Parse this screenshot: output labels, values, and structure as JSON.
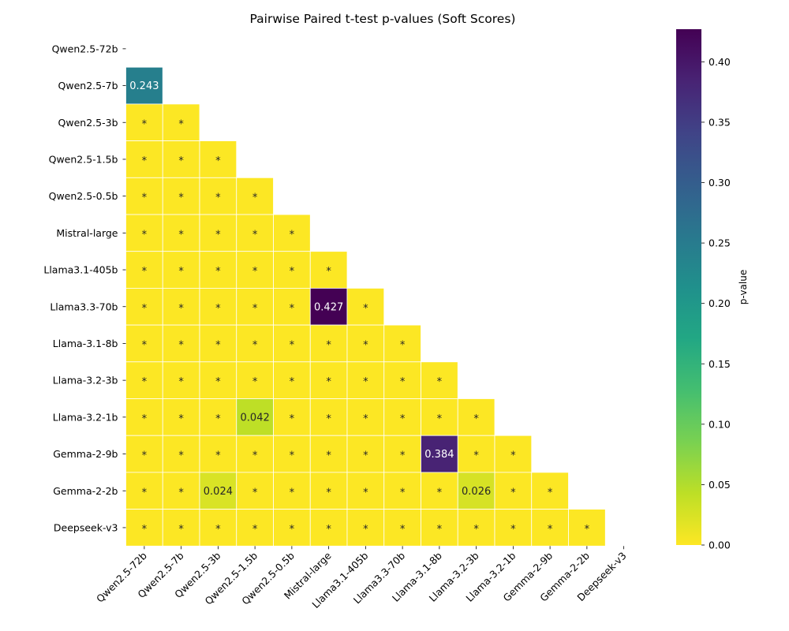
{
  "chart_data": {
    "type": "heatmap",
    "title": "Pairwise Paired t-test p-values (Soft Scores)",
    "xlabel": "",
    "ylabel": "",
    "row_labels": [
      "Qwen2.5-72b",
      "Qwen2.5-7b",
      "Qwen2.5-3b",
      "Qwen2.5-1.5b",
      "Qwen2.5-0.5b",
      "Mistral-large",
      "Llama3.1-405b",
      "Llama3.3-70b",
      "Llama-3.1-8b",
      "Llama-3.2-3b",
      "Llama-3.2-1b",
      "Gemma-2-9b",
      "Gemma-2-2b",
      "Deepseek-v3"
    ],
    "col_labels": [
      "Qwen2.5-72b",
      "Qwen2.5-7b",
      "Qwen2.5-3b",
      "Qwen2.5-1.5b",
      "Qwen2.5-0.5b",
      "Mistral-large",
      "Llama3.1-405b",
      "Llama3.3-70b",
      "Llama-3.1-8b",
      "Llama-3.2-3b",
      "Llama-3.2-1b",
      "Gemma-2-9b",
      "Gemma-2-2b",
      "Deepseek-v3"
    ],
    "mask": "upper-triangle-including-diagonal",
    "significance_marker": "*",
    "values": [
      [],
      [
        0.243
      ],
      [
        0.001,
        0.001
      ],
      [
        0.001,
        0.001,
        0.001
      ],
      [
        0.001,
        0.001,
        0.001,
        0.001
      ],
      [
        0.001,
        0.001,
        0.001,
        0.001,
        0.001
      ],
      [
        0.001,
        0.001,
        0.001,
        0.001,
        0.001,
        0.001
      ],
      [
        0.001,
        0.001,
        0.001,
        0.001,
        0.001,
        0.427,
        0.001
      ],
      [
        0.001,
        0.001,
        0.001,
        0.001,
        0.001,
        0.001,
        0.001,
        0.001
      ],
      [
        0.001,
        0.001,
        0.001,
        0.001,
        0.001,
        0.001,
        0.001,
        0.001,
        0.001
      ],
      [
        0.001,
        0.001,
        0.001,
        0.042,
        0.001,
        0.001,
        0.001,
        0.001,
        0.001,
        0.001
      ],
      [
        0.001,
        0.001,
        0.001,
        0.001,
        0.001,
        0.001,
        0.001,
        0.001,
        0.384,
        0.001,
        0.001
      ],
      [
        0.001,
        0.001,
        0.024,
        0.001,
        0.001,
        0.001,
        0.001,
        0.001,
        0.001,
        0.026,
        0.001,
        0.001
      ],
      [
        0.001,
        0.001,
        0.001,
        0.001,
        0.001,
        0.001,
        0.001,
        0.001,
        0.001,
        0.001,
        0.001,
        0.001,
        0.001
      ]
    ],
    "cell_labels": [
      [],
      [
        "0.243"
      ],
      [
        "*",
        "*"
      ],
      [
        "*",
        "*",
        "*"
      ],
      [
        "*",
        "*",
        "*",
        "*"
      ],
      [
        "*",
        "*",
        "*",
        "*",
        "*"
      ],
      [
        "*",
        "*",
        "*",
        "*",
        "*",
        "*"
      ],
      [
        "*",
        "*",
        "*",
        "*",
        "*",
        "0.427",
        "*"
      ],
      [
        "*",
        "*",
        "*",
        "*",
        "*",
        "*",
        "*",
        "*"
      ],
      [
        "*",
        "*",
        "*",
        "*",
        "*",
        "*",
        "*",
        "*",
        "*"
      ],
      [
        "*",
        "*",
        "*",
        "0.042",
        "*",
        "*",
        "*",
        "*",
        "*",
        "*"
      ],
      [
        "*",
        "*",
        "*",
        "*",
        "*",
        "*",
        "*",
        "*",
        "0.384",
        "*",
        "*"
      ],
      [
        "*",
        "*",
        "0.024",
        "*",
        "*",
        "*",
        "*",
        "*",
        "*",
        "0.026",
        "*",
        "*"
      ],
      [
        "*",
        "*",
        "*",
        "*",
        "*",
        "*",
        "*",
        "*",
        "*",
        "*",
        "*",
        "*",
        "*"
      ]
    ],
    "colormap": "viridis_r",
    "colorbar": {
      "label": "p-value",
      "range": [
        0,
        0.427
      ],
      "ticks": [
        0.0,
        0.05,
        0.1,
        0.15,
        0.2,
        0.25,
        0.3,
        0.35,
        0.4
      ],
      "tick_labels": [
        "0.00",
        "0.05",
        "0.10",
        "0.15",
        "0.20",
        "0.25",
        "0.30",
        "0.35",
        "0.40"
      ]
    }
  }
}
